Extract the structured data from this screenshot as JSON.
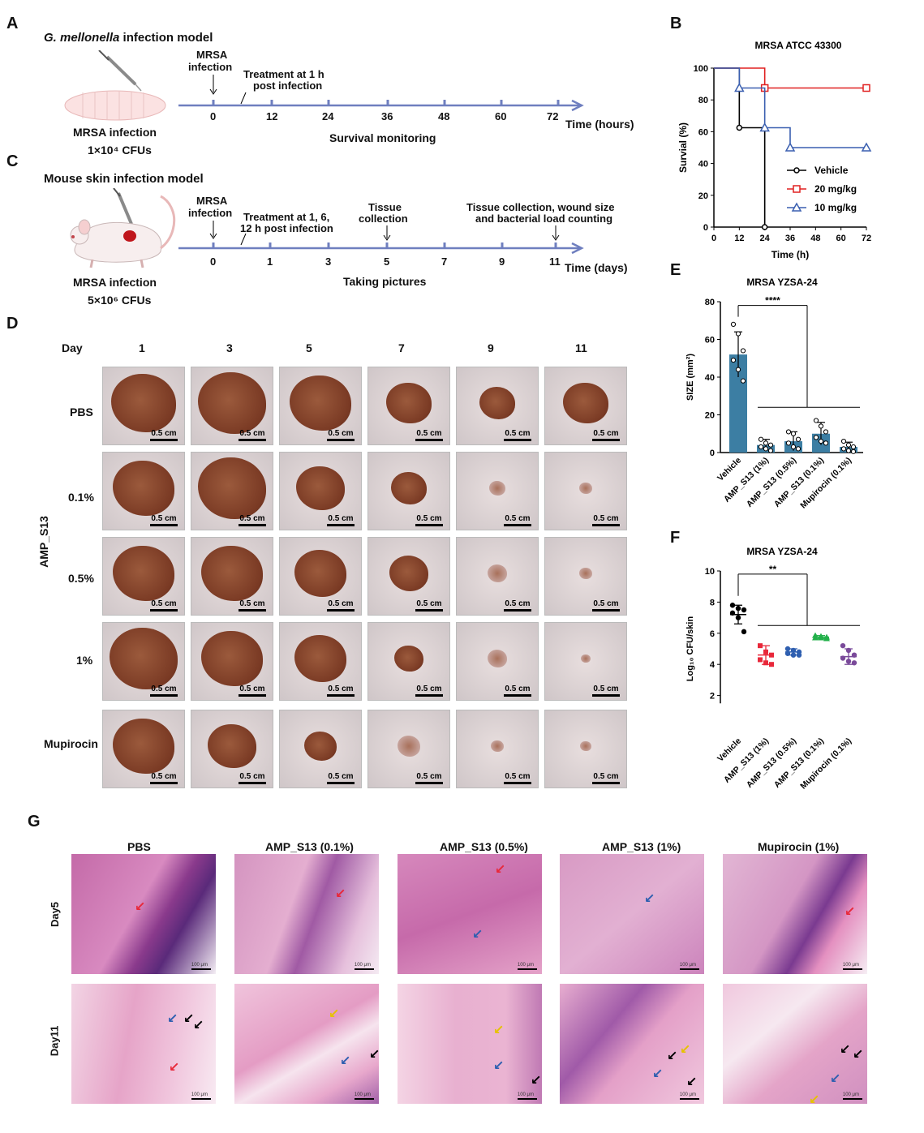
{
  "letters": {
    "a": "A",
    "b": "B",
    "c": "C",
    "d": "D",
    "e": "E",
    "f": "F",
    "g": "G"
  },
  "panelA": {
    "title_italic": "G. mellonella",
    "title_rest": " infection model",
    "infection": "MRSA infection",
    "cfu": "1×10⁴ CFUs",
    "mrsa": "MRSA",
    "infection_word": "infection",
    "treat1": "Treatment at 1 h",
    "treat2": "post infection",
    "ticks": [
      "0",
      "12",
      "24",
      "36",
      "48",
      "60",
      "72"
    ],
    "axis_label": "Time (hours)",
    "monitoring": "Survival monitoring"
  },
  "panelC": {
    "title": "Mouse skin infection model",
    "infection": "MRSA infection",
    "cfu": "5×10⁶ CFUs",
    "mrsa": "MRSA",
    "infection_word": "infection",
    "treat1": "Treatment at 1, 6,",
    "treat2": "12 h post infection",
    "tissue1": "Tissue",
    "tissue2": "collection",
    "final1": "Tissue collection, wound size",
    "final2": "and bacterial load counting",
    "ticks": [
      "0",
      "1",
      "3",
      "5",
      "7",
      "9",
      "11"
    ],
    "axis_label": "Time (days)",
    "pictures": "Taking pictures"
  },
  "panelD": {
    "day_label": "Day",
    "days": [
      "1",
      "3",
      "5",
      "7",
      "9",
      "11"
    ],
    "rows": [
      "PBS",
      "0.1%",
      "0.5%",
      "1%",
      "Mupirocin"
    ],
    "group_label": "AMP_S13",
    "scale": "0.5 cm"
  },
  "panelG": {
    "columns": [
      "PBS",
      "AMP_S13 (0.1%)",
      "AMP_S13 (0.5%)",
      "AMP_S13 (1%)",
      "Mupirocin (1%)"
    ],
    "rows": [
      "Day5",
      "Day11"
    ],
    "scale": "100 μm"
  },
  "colors": {
    "timeline": "#6f7fbf",
    "vehicle": "#000000",
    "dose20": "#e02020",
    "dose10": "#3a5fb0",
    "bar": "#3c7ea3",
    "red": "#e8283a",
    "blue": "#2f5fb0",
    "green": "#22b04a",
    "purple": "#7a4a9a"
  },
  "chart_data": [
    {
      "panel": "B",
      "type": "line",
      "title": "MRSA ATCC 43300",
      "xlabel": "Time (h)",
      "ylabel": "Survial (%)",
      "xlim": [
        0,
        72
      ],
      "ylim": [
        0,
        100
      ],
      "xticks": [
        0,
        12,
        24,
        36,
        48,
        60,
        72
      ],
      "yticks": [
        0,
        20,
        40,
        60,
        80,
        100
      ],
      "legend_position": "bottom-right",
      "series": [
        {
          "name": "Vehicle",
          "marker": "circle",
          "x": [
            0,
            12,
            24
          ],
          "y": [
            100,
            62.5,
            0
          ]
        },
        {
          "name": "20 mg/kg",
          "marker": "square",
          "x": [
            0,
            24,
            72
          ],
          "y": [
            100,
            87.5,
            87.5
          ]
        },
        {
          "name": "10 mg/kg",
          "marker": "triangle",
          "x": [
            0,
            12,
            24,
            36,
            72
          ],
          "y": [
            100,
            87.5,
            62.5,
            50,
            50
          ]
        }
      ]
    },
    {
      "panel": "E",
      "type": "bar",
      "title": "MRSA YZSA-24",
      "ylabel": "SIZE (mm²)",
      "ylim": [
        0,
        80
      ],
      "yticks": [
        0,
        20,
        40,
        60,
        80
      ],
      "categories": [
        "Vehicle",
        "AMP_S13 (1%)",
        "AMP_S13 (0.5%)",
        "AMP_S13 (0.1%)",
        "Mupirocin (0.1%)"
      ],
      "values": [
        52,
        4,
        6,
        10,
        3
      ],
      "sd": [
        12,
        3,
        5,
        6,
        2.5
      ],
      "points": [
        [
          68,
          63,
          54,
          49,
          44,
          38
        ],
        [
          7,
          5,
          4,
          3,
          2,
          1
        ],
        [
          11,
          10,
          7,
          5,
          3,
          2
        ],
        [
          17,
          14,
          11,
          8,
          6,
          5
        ],
        [
          6,
          4,
          3,
          2,
          1,
          0.5
        ]
      ],
      "significance": [
        "****"
      ]
    },
    {
      "panel": "F",
      "type": "scatter",
      "title": "MRSA YZSA-24",
      "ylabel": "Log₁₀ CFU/skin",
      "ylim": [
        0,
        10
      ],
      "yticks": [
        2,
        4,
        6,
        8,
        10
      ],
      "categories": [
        "Vehicle",
        "AMP_S13 (1%)",
        "AMP_S13 (0.5%)",
        "AMP_S13 (0.1%)",
        "Mupirocin (0.1%)"
      ],
      "means": [
        7.2,
        4.6,
        4.8,
        5.75,
        4.5
      ],
      "sd": [
        0.6,
        0.6,
        0.2,
        0.1,
        0.5
      ],
      "points": [
        [
          7.8,
          7.6,
          7.5,
          7.3,
          7.0,
          6.1
        ],
        [
          5.2,
          4.8,
          4.6,
          4.3,
          4.1,
          4.0
        ],
        [
          5.0,
          4.9,
          4.8,
          4.7,
          4.6,
          4.6
        ],
        [
          5.85,
          5.8,
          5.75,
          5.7,
          5.7,
          5.65
        ],
        [
          5.2,
          4.9,
          4.6,
          4.4,
          4.2,
          4.1
        ]
      ],
      "significance": [
        "**"
      ]
    }
  ]
}
